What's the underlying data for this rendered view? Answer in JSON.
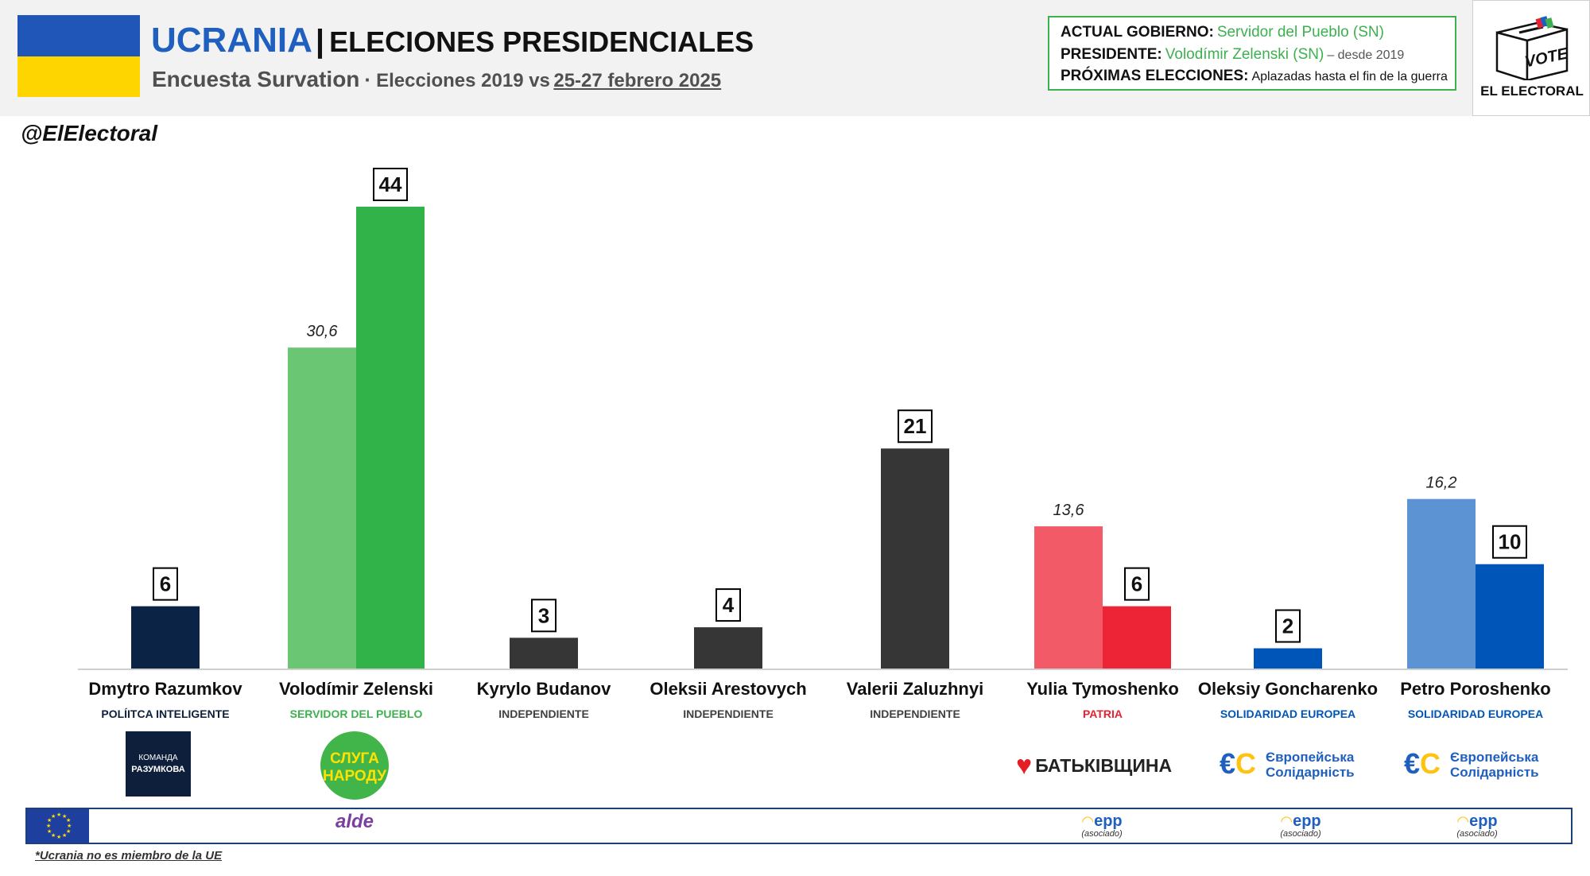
{
  "header": {
    "country": "UCRANIA",
    "title_separator": "|",
    "title": "ELECIONES PRESIDENCIALES",
    "pollster": "Encuesta Survation",
    "subtitle_separator": "·",
    "comparison": "Elecciones 2019 vs",
    "poll_dates": "25-27 febrero 2025"
  },
  "info_box": {
    "government_label": "ACTUAL GOBIERNO:",
    "government_value": "Servidor del Pueblo (SN)",
    "president_label": "PRESIDENTE:",
    "president_value": "Volodímir Zelenski (SN)",
    "president_note": "– desde 2019",
    "next_election_label": "PRÓXIMAS ELECCIONES:",
    "next_election_value": "Aplazadas hasta el fin de la guerra"
  },
  "logo": {
    "vote_text": "VOTE",
    "name": "EL ELECTORAL"
  },
  "handle": "@ElElectoral",
  "colors": {
    "ukraine_blue": "#1f56b8",
    "ukraine_yellow": "#ffd500",
    "green_accent": "#3db04f",
    "label_box_border": "#000000"
  },
  "chart_data": {
    "type": "bar",
    "categories": [
      "Dmytro Razumkov",
      "Volodímir Zelenski",
      "Kyrylo Budanov",
      "Oleksii Arestovych",
      "Valerii Zaluzhnyi",
      "Yulia Tymoshenko",
      "Oleksiy Goncharenko",
      "Petro Poroshenko"
    ],
    "parties": [
      "POLÍITCA INTELIGENTE",
      "SERVIDOR DEL PUEBLO",
      "INDEPENDIENTE",
      "INDEPENDIENTE",
      "INDEPENDIENTE",
      "PATRIA",
      "SOLIDARIDAD EUROPEA",
      "SOLIDARIDAD EUROPEA"
    ],
    "party_colors": [
      "#0d1f3a",
      "#3db04f",
      "#404040",
      "#404040",
      "#404040",
      "#e8202f",
      "#0055b8",
      "#0055b8"
    ],
    "series": [
      {
        "name": "",
        "values": [
          null,
          30.6,
          null,
          null,
          null,
          13.6,
          null,
          16.2
        ],
        "labels": [
          "",
          "30,6",
          "",
          "",
          "",
          "13,6",
          "",
          "16,2"
        ],
        "colors": [
          "#0d1f3a",
          "#6bc674",
          "#363636",
          "#363636",
          "#363636",
          "#f25a68",
          "#0055b8",
          "#5b93d3"
        ]
      },
      {
        "name": "",
        "values": [
          6,
          44,
          3,
          4,
          21,
          6,
          2,
          10
        ],
        "labels": [
          "6",
          "44",
          "3",
          "4",
          "21",
          "6",
          "2",
          "10"
        ],
        "colors": [
          "#0b2344",
          "#32b34a",
          "#363636",
          "#363636",
          "#363636",
          "#ed2336",
          "#0055b8",
          "#0055b8"
        ]
      }
    ],
    "title": "",
    "xlabel": "",
    "ylabel": "",
    "ylim": [
      0,
      44
    ],
    "grid": false,
    "legend": "none"
  },
  "emblems": {
    "komanda_line1": "КОМАНДА",
    "komanda_line2": "РАЗУМКОВА",
    "sluha_line1": "СЛУГА",
    "sluha_line2": "НАРОДУ",
    "batkivshchyna": "БАТЬКІВЩИНА",
    "es_line1": "Європейська",
    "es_line2": "Солідарність"
  },
  "eu_groups": {
    "alde": "alde",
    "epp": "epp",
    "epp_note": "(asociado)"
  },
  "footnote": "*Ucrania no es miembro de la UE"
}
